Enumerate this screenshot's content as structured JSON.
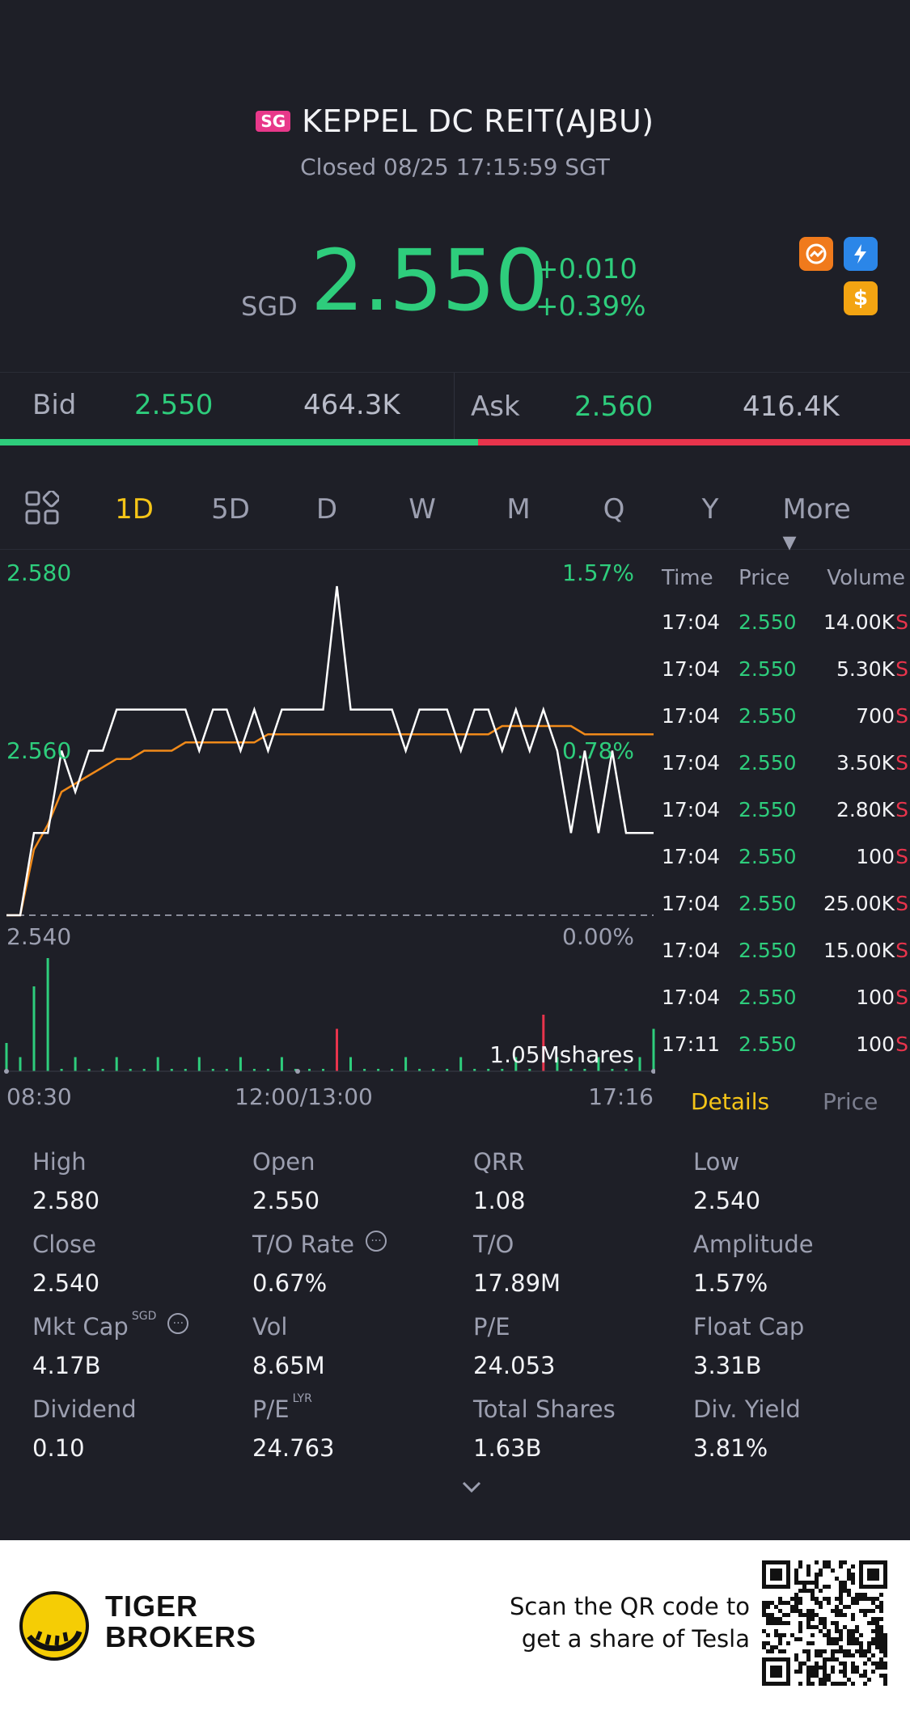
{
  "header": {
    "market_badge": "SG",
    "title": "KEPPEL DC REIT(AJBU)",
    "status": "Closed 08/25 17:15:59 SGT",
    "currency": "SGD",
    "last_price": "2.550",
    "change": "+0.010",
    "change_pct": "+0.39%",
    "icons": [
      "lightning-badge-icon",
      "dollar-icon",
      "orange-badge-icon"
    ]
  },
  "bidask": {
    "bid_label": "Bid",
    "bid_price": "2.550",
    "bid_size": "464.3K",
    "ask_label": "Ask",
    "ask_price": "2.560",
    "ask_size": "416.4K",
    "bid_ratio": 0.525
  },
  "tabs": [
    "1D",
    "5D",
    "D",
    "W",
    "M",
    "Q",
    "Y",
    "More ▾"
  ],
  "active_tab": "1D",
  "chart": {
    "y_high": "2.580",
    "y_mid": "2.560",
    "y_low": "2.540",
    "pct_high": "1.57%",
    "pct_mid": "0.78%",
    "pct_low": "0.00%",
    "volume_label": "1.05Mshares",
    "x_start": "08:30",
    "x_mid": "12:00/13:00",
    "x_end": "17:16"
  },
  "trades": {
    "headers": {
      "time": "Time",
      "price": "Price",
      "volume": "Volume"
    },
    "rows": [
      {
        "time": "17:04",
        "price": "2.550",
        "volume": "14.00K",
        "side": "S"
      },
      {
        "time": "17:04",
        "price": "2.550",
        "volume": "5.30K",
        "side": "S"
      },
      {
        "time": "17:04",
        "price": "2.550",
        "volume": "700",
        "side": "S"
      },
      {
        "time": "17:04",
        "price": "2.550",
        "volume": "3.50K",
        "side": "S"
      },
      {
        "time": "17:04",
        "price": "2.550",
        "volume": "2.80K",
        "side": "S"
      },
      {
        "time": "17:04",
        "price": "2.550",
        "volume": "100",
        "side": "S"
      },
      {
        "time": "17:04",
        "price": "2.550",
        "volume": "25.00K",
        "side": "S"
      },
      {
        "time": "17:04",
        "price": "2.550",
        "volume": "15.00K",
        "side": "S"
      },
      {
        "time": "17:04",
        "price": "2.550",
        "volume": "100",
        "side": "S"
      },
      {
        "time": "17:11",
        "price": "2.550",
        "volume": "100",
        "side": "S"
      }
    ],
    "tab_details": "Details",
    "tab_price": "Price"
  },
  "stats": {
    "high_label": "High",
    "high": "2.580",
    "open_label": "Open",
    "open": "2.550",
    "qrr_label": "QRR",
    "qrr": "1.08",
    "low_label": "Low",
    "low": "2.540",
    "close_label": "Close",
    "close": "2.540",
    "to_rate_label": "T/O Rate",
    "to_rate": "0.67%",
    "to_label": "T/O",
    "to": "17.89M",
    "amplitude_label": "Amplitude",
    "amplitude": "1.57%",
    "mktcap_label": "Mkt Cap",
    "mktcap_sup": "SGD",
    "mktcap": "4.17B",
    "vol_label": "Vol",
    "vol": "8.65M",
    "pe_label": "P/E",
    "pe": "24.053",
    "floatcap_label": "Float Cap",
    "floatcap": "3.31B",
    "dividend_label": "Dividend",
    "dividend": "0.10",
    "pe_lyr_label": "P/E",
    "pe_lyr_sup": "LYR",
    "pe_lyr": "24.763",
    "total_shares_label": "Total Shares",
    "total_shares": "1.63B",
    "div_yield_label": "Div. Yield",
    "div_yield": "3.81%"
  },
  "footer": {
    "brand_line1": "TIGER",
    "brand_line2": "BROKERS",
    "scan_line1": "Scan the QR code to",
    "scan_line2": "get a share of Tesla"
  },
  "chart_data": {
    "type": "line",
    "price_levels": {
      "low": 2.54,
      "mid": 2.56,
      "high": 2.58
    },
    "series": [
      {
        "values": [
          2.54,
          2.54,
          2.55,
          2.55,
          2.56,
          2.555,
          2.56,
          2.56,
          2.565,
          2.565,
          2.565,
          2.565,
          2.565,
          2.565,
          2.56,
          2.565,
          2.565,
          2.56,
          2.565,
          2.56,
          2.565,
          2.565,
          2.565,
          2.565,
          2.58,
          2.565,
          2.565,
          2.565,
          2.565,
          2.56,
          2.565,
          2.565,
          2.565,
          2.56,
          2.565,
          2.565,
          2.56,
          2.565,
          2.56,
          2.565,
          2.56,
          2.55,
          2.56,
          2.55,
          2.56,
          2.55,
          2.55,
          2.55
        ]
      },
      {
        "values": [
          2.54,
          2.54,
          2.548,
          2.551,
          2.555,
          2.556,
          2.557,
          2.558,
          2.559,
          2.559,
          2.56,
          2.56,
          2.56,
          2.561,
          2.561,
          2.561,
          2.561,
          2.561,
          2.561,
          2.562,
          2.562,
          2.562,
          2.562,
          2.562,
          2.562,
          2.562,
          2.562,
          2.562,
          2.562,
          2.562,
          2.562,
          2.562,
          2.562,
          2.562,
          2.562,
          2.562,
          2.563,
          2.563,
          2.563,
          2.563,
          2.563,
          2.563,
          2.562,
          2.562,
          2.562,
          2.562,
          2.562,
          2.562
        ]
      }
    ],
    "volume": [
      2,
      1,
      6,
      8,
      0,
      1,
      0,
      0,
      1,
      0,
      0,
      1,
      0,
      0,
      1,
      0,
      0,
      1,
      0,
      0,
      1,
      0,
      0,
      0,
      3,
      1,
      0,
      0,
      0,
      1,
      0,
      0,
      0,
      1,
      0,
      0,
      0,
      1,
      0,
      4,
      1,
      0,
      0,
      1,
      0,
      0,
      1,
      3
    ],
    "volume_colors": [
      "g",
      "g",
      "g",
      "g",
      "g",
      "g",
      "g",
      "g",
      "g",
      "g",
      "g",
      "g",
      "g",
      "g",
      "g",
      "g",
      "g",
      "g",
      "g",
      "g",
      "g",
      "g",
      "g",
      "g",
      "r",
      "g",
      "g",
      "g",
      "g",
      "g",
      "g",
      "g",
      "g",
      "g",
      "g",
      "g",
      "g",
      "g",
      "g",
      "r",
      "g",
      "g",
      "g",
      "g",
      "g",
      "g",
      "g",
      "g"
    ]
  }
}
